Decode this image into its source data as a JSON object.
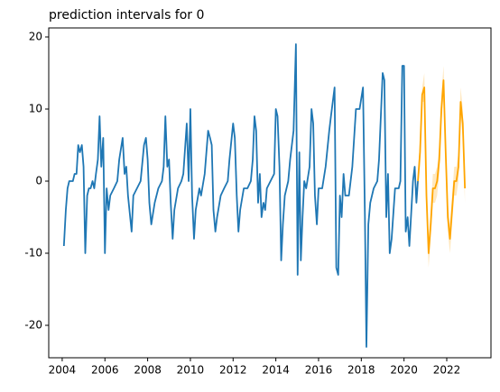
{
  "chart_data": {
    "type": "line",
    "title": "prediction intervals for 0",
    "xlim": [
      2003.37,
      2024.07
    ],
    "ylim": [
      -24.5,
      21.25
    ],
    "xticks": [
      2004,
      2006,
      2008,
      2010,
      2012,
      2014,
      2016,
      2018,
      2020,
      2022
    ],
    "yticks": [
      -20,
      -10,
      0,
      10,
      20
    ],
    "series": [
      {
        "color": "#1f77b4",
        "x": [
          2004.08,
          2004.17,
          2004.25,
          2004.33,
          2004.42,
          2004.5,
          2004.58,
          2004.67,
          2004.75,
          2004.83,
          2004.92,
          2005.0,
          2005.08,
          2005.17,
          2005.25,
          2005.33,
          2005.42,
          2005.5,
          2005.58,
          2005.67,
          2005.75,
          2005.83,
          2005.92,
          2006.0,
          2006.08,
          2006.17,
          2006.25,
          2006.42,
          2006.58,
          2006.67,
          2006.83,
          2006.92,
          2007.0,
          2007.08,
          2007.25,
          2007.33,
          2007.5,
          2007.67,
          2007.83,
          2007.92,
          2008.0,
          2008.08,
          2008.17,
          2008.33,
          2008.5,
          2008.67,
          2008.75,
          2008.83,
          2008.92,
          2009.0,
          2009.08,
          2009.17,
          2009.25,
          2009.42,
          2009.58,
          2009.67,
          2009.83,
          2009.92,
          2010.0,
          2010.08,
          2010.17,
          2010.25,
          2010.42,
          2010.5,
          2010.67,
          2010.83,
          2010.92,
          2011.0,
          2011.08,
          2011.17,
          2011.25,
          2011.42,
          2011.58,
          2011.75,
          2011.83,
          2012.0,
          2012.08,
          2012.17,
          2012.25,
          2012.33,
          2012.5,
          2012.67,
          2012.83,
          2012.92,
          2013.0,
          2013.08,
          2013.17,
          2013.25,
          2013.33,
          2013.42,
          2013.5,
          2013.58,
          2013.75,
          2013.92,
          2014.0,
          2014.08,
          2014.17,
          2014.25,
          2014.33,
          2014.42,
          2014.58,
          2014.67,
          2014.83,
          2014.94,
          2015.02,
          2015.1,
          2015.17,
          2015.25,
          2015.33,
          2015.42,
          2015.58,
          2015.67,
          2015.75,
          2015.83,
          2015.92,
          2016.0,
          2016.17,
          2016.33,
          2016.5,
          2016.58,
          2016.75,
          2016.83,
          2016.92,
          2017.0,
          2017.08,
          2017.17,
          2017.25,
          2017.42,
          2017.58,
          2017.75,
          2017.92,
          2018.08,
          2018.17,
          2018.24,
          2018.33,
          2018.42,
          2018.58,
          2018.75,
          2018.83,
          2019.0,
          2019.08,
          2019.17,
          2019.25,
          2019.33,
          2019.42,
          2019.58,
          2019.75,
          2019.83,
          2019.92,
          2020.0,
          2020.08,
          2020.17,
          2020.25,
          2020.42,
          2020.5,
          2020.58,
          2020.65
        ],
        "values": [
          -9,
          -4,
          -1,
          0,
          0,
          0,
          1,
          1,
          5,
          4,
          5,
          2,
          -10,
          -2,
          -1,
          -1,
          0,
          -1,
          1,
          3,
          9,
          2,
          6,
          -10,
          -1,
          -4,
          -2,
          -1,
          0,
          3,
          6,
          1,
          2,
          -2,
          -7,
          -2,
          -1,
          0,
          5,
          6,
          3,
          -3,
          -6,
          -3,
          -1,
          0,
          2,
          9,
          2,
          3,
          -3,
          -8,
          -4,
          -1,
          0,
          1,
          8,
          0,
          10,
          -2,
          -8,
          -4,
          -1,
          -2,
          1,
          7,
          6,
          5,
          -4,
          -7,
          -5,
          -2,
          -1,
          0,
          3,
          8,
          6,
          -2,
          -7,
          -4,
          -1,
          -1,
          0,
          3,
          9,
          7,
          -3,
          1,
          -5,
          -3,
          -4,
          -1,
          0,
          1,
          10,
          9,
          2,
          -11,
          -6,
          -2,
          0,
          3,
          7,
          19,
          -13,
          4,
          -11,
          -5,
          0,
          -1,
          2,
          10,
          8,
          -2,
          -6,
          -1,
          -1,
          2,
          7,
          9,
          13,
          -12,
          -13,
          -2,
          -5,
          1,
          -2,
          -2,
          2,
          10,
          10,
          13,
          -5,
          -23,
          -6,
          -3,
          -1,
          0,
          3,
          15,
          14,
          -5,
          1,
          -10,
          -8,
          -1,
          -1,
          0,
          16,
          16,
          -7,
          -5,
          -9,
          0,
          2,
          -3,
          0
        ]
      },
      {
        "color": "#ffa500",
        "x": [
          2020.65,
          2020.75,
          2020.85,
          2020.95,
          2021.05,
          2021.15,
          2021.25,
          2021.35,
          2021.45,
          2021.55,
          2021.65,
          2021.75,
          2021.85,
          2021.95,
          2022.05,
          2022.15,
          2022.25,
          2022.35,
          2022.45,
          2022.55,
          2022.65,
          2022.75,
          2022.85
        ],
        "values": [
          0,
          4,
          12,
          13,
          -2,
          -10,
          -6,
          -1,
          -1,
          0,
          3,
          10,
          14,
          4,
          -5,
          -8,
          -4,
          0,
          0,
          2,
          11,
          8,
          -1
        ],
        "lower": [
          -1,
          2,
          11,
          11,
          -4,
          -12,
          -8,
          -3,
          -3,
          -2,
          1,
          8,
          12,
          2,
          -7,
          -10,
          -6,
          -2,
          -2,
          0,
          9,
          6,
          -3
        ],
        "upper": [
          1,
          6,
          13,
          15,
          0,
          -8,
          -4,
          1,
          1,
          2,
          5,
          12,
          16,
          6,
          -3,
          -6,
          -2,
          2,
          2,
          4,
          13,
          10,
          1
        ]
      }
    ]
  }
}
